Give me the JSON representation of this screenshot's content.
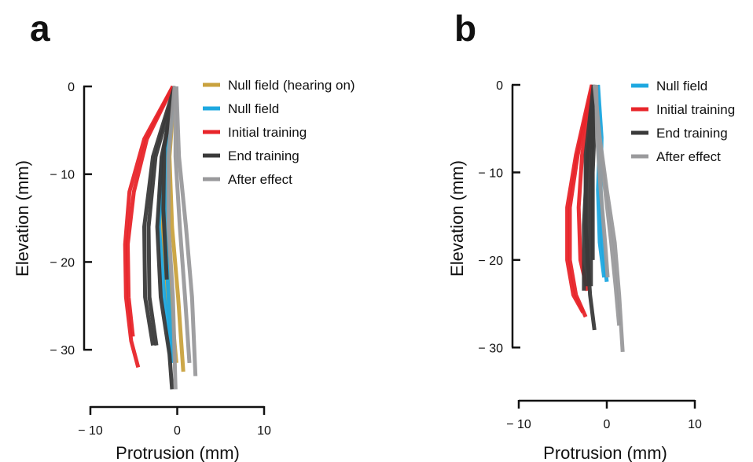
{
  "chart_data": [
    {
      "panel": "a",
      "type": "line",
      "xlabel": "Protrusion (mm)",
      "ylabel": "Elevation (mm)",
      "xlim": [
        -10,
        10
      ],
      "ylim": [
        -35,
        0
      ],
      "xticks": [
        {
          "v": -10,
          "label": "− 10"
        },
        {
          "v": 0,
          "label": "0"
        },
        {
          "v": 10,
          "label": "10"
        }
      ],
      "yticks": [
        {
          "v": 0,
          "label": "0"
        },
        {
          "v": -10,
          "label": "− 10"
        },
        {
          "v": -20,
          "label": "− 20"
        },
        {
          "v": -30,
          "label": "− 30"
        }
      ],
      "legend": [
        {
          "label": "Null field (hearing on)",
          "color": "#c9a23e"
        },
        {
          "label": "Null field",
          "color": "#1ea8e0"
        },
        {
          "label": "Initial training",
          "color": "#e8252a"
        },
        {
          "label": "End training",
          "color": "#3a3a3a"
        },
        {
          "label": "After effect",
          "color": "#9a9a9c"
        }
      ],
      "series": [
        {
          "name": "Null field (hearing on)",
          "color": "#c9a23e",
          "lines": [
            [
              [
                -0.5,
                0
              ],
              [
                -1.6,
                -8
              ],
              [
                -1.7,
                -16
              ],
              [
                -1.2,
                -24
              ],
              [
                -0.4,
                -30.5
              ]
            ],
            [
              [
                -0.3,
                0
              ],
              [
                -0.9,
                -8
              ],
              [
                -0.6,
                -16
              ],
              [
                0.1,
                -24
              ],
              [
                0.7,
                -32.5
              ]
            ],
            [
              [
                -0.4,
                0
              ],
              [
                -1.3,
                -8
              ],
              [
                -1.4,
                -16
              ],
              [
                -0.8,
                -24
              ],
              [
                -0.1,
                -31.5
              ]
            ]
          ]
        },
        {
          "name": "Null field",
          "color": "#1ea8e0",
          "lines": [
            [
              [
                -0.4,
                0
              ],
              [
                -1.8,
                -9
              ],
              [
                -2.1,
                -16
              ],
              [
                -1.5,
                -24
              ],
              [
                -0.7,
                -31.5
              ]
            ],
            [
              [
                -0.3,
                0
              ],
              [
                -1.2,
                -8
              ],
              [
                -1.4,
                -16
              ],
              [
                -1.0,
                -24
              ],
              [
                -0.6,
                -31.5
              ]
            ]
          ]
        },
        {
          "name": "Initial training",
          "color": "#e8252a",
          "lines": [
            [
              [
                -0.5,
                0
              ],
              [
                -3.5,
                -6
              ],
              [
                -5.0,
                -12
              ],
              [
                -5.7,
                -18
              ],
              [
                -5.6,
                -24
              ],
              [
                -5.1,
                -28.5
              ]
            ],
            [
              [
                -0.5,
                0
              ],
              [
                -3.8,
                -6
              ],
              [
                -5.5,
                -12
              ],
              [
                -6.0,
                -18
              ],
              [
                -5.9,
                -24
              ],
              [
                -5.3,
                -29
              ],
              [
                -4.5,
                -32
              ]
            ]
          ]
        },
        {
          "name": "End training",
          "color": "#3a3a3a",
          "lines": [
            [
              [
                -0.2,
                0
              ],
              [
                -2.5,
                -8
              ],
              [
                -3.3,
                -16
              ],
              [
                -3.2,
                -24
              ],
              [
                -2.4,
                -29.5
              ]
            ],
            [
              [
                -0.3,
                0
              ],
              [
                -2.8,
                -8
              ],
              [
                -3.8,
                -16
              ],
              [
                -3.7,
                -24
              ],
              [
                -2.8,
                -29.5
              ]
            ],
            [
              [
                -0.1,
                0
              ],
              [
                -1.8,
                -8
              ],
              [
                -2.3,
                -16
              ],
              [
                -1.9,
                -24
              ],
              [
                -0.9,
                -30.5
              ],
              [
                -0.6,
                -34.5
              ]
            ],
            [
              [
                -0.3,
                0
              ],
              [
                -1.5,
                -7
              ],
              [
                -1.6,
                -14
              ],
              [
                -1.2,
                -22
              ]
            ]
          ]
        },
        {
          "name": "After effect",
          "color": "#9a9a9c",
          "lines": [
            [
              [
                -0.1,
                0
              ],
              [
                0.2,
                -8
              ],
              [
                1.0,
                -16
              ],
              [
                1.7,
                -24
              ],
              [
                2.1,
                -33
              ]
            ],
            [
              [
                -0.2,
                0
              ],
              [
                -0.2,
                -8
              ],
              [
                0.3,
                -16
              ],
              [
                0.9,
                -24
              ],
              [
                1.4,
                -31.5
              ]
            ],
            [
              [
                -0.3,
                0
              ],
              [
                -1.0,
                -8
              ],
              [
                -1.0,
                -16
              ],
              [
                -0.5,
                -24
              ],
              [
                -0.2,
                -34.5
              ]
            ]
          ]
        }
      ]
    },
    {
      "panel": "b",
      "type": "line",
      "xlabel": "Protrusion (mm)",
      "ylabel": "Elevation (mm)",
      "xlim": [
        -10,
        10
      ],
      "ylim": [
        -35,
        0
      ],
      "xticks": [
        {
          "v": -10,
          "label": "− 10"
        },
        {
          "v": 0,
          "label": "0"
        },
        {
          "v": 10,
          "label": "10"
        }
      ],
      "yticks": [
        {
          "v": 0,
          "label": "0"
        },
        {
          "v": -10,
          "label": "− 10"
        },
        {
          "v": -20,
          "label": "− 20"
        },
        {
          "v": -30,
          "label": "− 30"
        }
      ],
      "legend": [
        {
          "label": "Null field",
          "color": "#1ea8e0"
        },
        {
          "label": "Initial training",
          "color": "#e8252a"
        },
        {
          "label": "End training",
          "color": "#3a3a3a"
        },
        {
          "label": "After effect",
          "color": "#9a9a9c"
        }
      ],
      "series": [
        {
          "name": "Null field",
          "color": "#1ea8e0",
          "lines": [
            [
              [
                -1.0,
                0
              ],
              [
                -0.6,
                -6
              ],
              [
                -0.7,
                -12
              ],
              [
                -0.5,
                -18
              ],
              [
                0.0,
                -22.5
              ]
            ],
            [
              [
                -1.1,
                0
              ],
              [
                -0.8,
                -6
              ],
              [
                -1.0,
                -12
              ],
              [
                -0.8,
                -18
              ],
              [
                -0.3,
                -22
              ]
            ]
          ]
        },
        {
          "name": "Initial training",
          "color": "#e8252a",
          "lines": [
            [
              [
                -1.6,
                0
              ],
              [
                -3.3,
                -8
              ],
              [
                -4.2,
                -14
              ],
              [
                -4.2,
                -20
              ],
              [
                -3.5,
                -24
              ],
              [
                -2.4,
                -26.5
              ]
            ],
            [
              [
                -1.7,
                0
              ],
              [
                -3.5,
                -8
              ],
              [
                -4.5,
                -14
              ],
              [
                -4.5,
                -20
              ],
              [
                -3.8,
                -24
              ],
              [
                -2.7,
                -26
              ]
            ],
            [
              [
                -1.6,
                0
              ],
              [
                -2.8,
                -8
              ],
              [
                -3.2,
                -14
              ],
              [
                -3.0,
                -20
              ],
              [
                -2.2,
                -23.5
              ]
            ]
          ]
        },
        {
          "name": "End training",
          "color": "#3a3a3a",
          "lines": [
            [
              [
                -1.4,
                0
              ],
              [
                -2.2,
                -8
              ],
              [
                -2.6,
                -16
              ],
              [
                -2.6,
                -23.5
              ]
            ],
            [
              [
                -1.3,
                0
              ],
              [
                -2.0,
                -8
              ],
              [
                -2.2,
                -16
              ],
              [
                -2.2,
                -23
              ]
            ],
            [
              [
                -1.2,
                0
              ],
              [
                -1.7,
                -8
              ],
              [
                -1.8,
                -16
              ],
              [
                -1.8,
                -23
              ]
            ],
            [
              [
                -1.5,
                0
              ],
              [
                -2.4,
                -8
              ],
              [
                -2.4,
                -16
              ],
              [
                -1.9,
                -24
              ],
              [
                -1.4,
                -28
              ]
            ],
            [
              [
                -1.2,
                0
              ],
              [
                -1.6,
                -10
              ],
              [
                -1.6,
                -20
              ]
            ]
          ]
        },
        {
          "name": "After effect",
          "color": "#9a9a9c",
          "lines": [
            [
              [
                -1.4,
                0
              ],
              [
                -0.8,
                -6
              ],
              [
                0.0,
                -12
              ],
              [
                0.9,
                -18
              ],
              [
                1.4,
                -24
              ],
              [
                1.8,
                -30.5
              ]
            ],
            [
              [
                -1.3,
                0
              ],
              [
                -0.9,
                -6
              ],
              [
                -0.2,
                -12
              ],
              [
                0.5,
                -18
              ],
              [
                1.0,
                -23
              ],
              [
                1.4,
                -27.5
              ]
            ],
            [
              [
                -1.2,
                0
              ],
              [
                -1.1,
                -6
              ],
              [
                -0.7,
                -12
              ],
              [
                -0.2,
                -18
              ],
              [
                0.1,
                -22
              ]
            ]
          ]
        }
      ]
    }
  ]
}
